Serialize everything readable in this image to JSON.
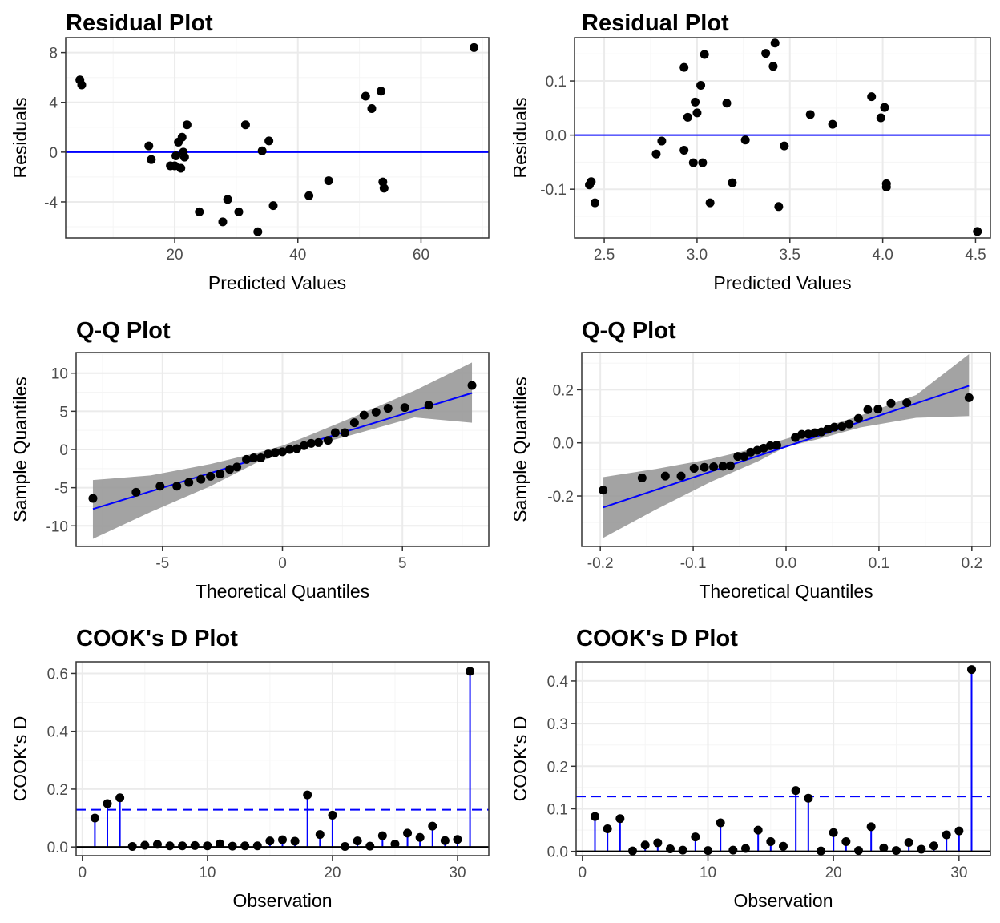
{
  "colors": {
    "point": "#000000",
    "line": "#0000ff",
    "band": "#999999",
    "grid_major": "#ebebeb",
    "grid_minor": "#f5f5f5",
    "panel_border": "#333333"
  },
  "chart_data": [
    {
      "type": "scatter",
      "title": "Residual Plot",
      "xlabel": "Predicted Values",
      "ylabel": "Residuals",
      "xlim": [
        2.3,
        71.0
      ],
      "ylim": [
        -6.9,
        9.2
      ],
      "xticks": [
        20,
        40,
        60
      ],
      "xtick_labels": [
        "20",
        "40",
        "60"
      ],
      "yticks": [
        -4,
        0,
        4,
        8
      ],
      "ytick_labels": [
        "-4",
        "0",
        "4",
        "8"
      ],
      "hline": 0,
      "points": [
        [
          4.6,
          5.8
        ],
        [
          4.9,
          5.4
        ],
        [
          15.8,
          0.5
        ],
        [
          16.2,
          -0.6
        ],
        [
          19.3,
          -1.1
        ],
        [
          20.0,
          -1.1
        ],
        [
          20.2,
          -0.3
        ],
        [
          20.6,
          0.8
        ],
        [
          21.0,
          -1.3
        ],
        [
          21.2,
          1.2
        ],
        [
          21.4,
          0.0
        ],
        [
          21.6,
          -0.4
        ],
        [
          22.0,
          2.2
        ],
        [
          24.0,
          -4.8
        ],
        [
          27.8,
          -5.6
        ],
        [
          28.6,
          -3.8
        ],
        [
          30.4,
          -4.8
        ],
        [
          31.5,
          2.2
        ],
        [
          33.5,
          -6.4
        ],
        [
          34.2,
          0.1
        ],
        [
          35.3,
          0.9
        ],
        [
          36.0,
          -4.3
        ],
        [
          41.8,
          -3.5
        ],
        [
          45.0,
          -2.3
        ],
        [
          51.0,
          4.5
        ],
        [
          52.0,
          3.5
        ],
        [
          53.5,
          4.9
        ],
        [
          53.8,
          -2.4
        ],
        [
          54.0,
          -2.9
        ],
        [
          68.6,
          8.4
        ]
      ]
    },
    {
      "type": "scatter",
      "title": "Residual Plot",
      "xlabel": "Predicted Values",
      "ylabel": "Residuals",
      "xlim": [
        2.34,
        4.58
      ],
      "ylim": [
        -0.19,
        0.18
      ],
      "xticks": [
        2.5,
        3.0,
        3.5,
        4.0,
        4.5
      ],
      "xtick_labels": [
        "2.5",
        "3.0",
        "3.5",
        "4.0",
        "4.5"
      ],
      "yticks": [
        -0.1,
        0.0,
        0.1
      ],
      "ytick_labels": [
        "-0.1",
        "0.0",
        "0.1"
      ],
      "hline": 0,
      "points": [
        [
          2.42,
          -0.092
        ],
        [
          2.43,
          -0.086
        ],
        [
          2.45,
          -0.125
        ],
        [
          2.78,
          -0.035
        ],
        [
          2.81,
          -0.011
        ],
        [
          2.93,
          -0.028
        ],
        [
          2.93,
          0.125
        ],
        [
          2.95,
          0.033
        ],
        [
          2.98,
          -0.051
        ],
        [
          2.99,
          0.061
        ],
        [
          3.0,
          0.041
        ],
        [
          3.02,
          0.092
        ],
        [
          3.03,
          -0.051
        ],
        [
          3.04,
          0.149
        ],
        [
          3.07,
          -0.125
        ],
        [
          3.16,
          0.059
        ],
        [
          3.19,
          -0.088
        ],
        [
          3.26,
          -0.009
        ],
        [
          3.37,
          0.151
        ],
        [
          3.41,
          0.127
        ],
        [
          3.42,
          0.17
        ],
        [
          3.44,
          -0.132
        ],
        [
          3.47,
          -0.02
        ],
        [
          3.61,
          0.038
        ],
        [
          3.73,
          0.02
        ],
        [
          3.94,
          0.071
        ],
        [
          3.99,
          0.032
        ],
        [
          4.01,
          0.051
        ],
        [
          4.02,
          -0.09
        ],
        [
          4.02,
          -0.096
        ],
        [
          4.51,
          -0.178
        ]
      ]
    },
    {
      "type": "scatter",
      "title": "Q-Q Plot",
      "xlabel": "Theoretical Quantiles",
      "ylabel": "Sample Quantiles",
      "xlim": [
        -8.6,
        8.6
      ],
      "ylim": [
        -12.7,
        12.7
      ],
      "xticks": [
        -5,
        0,
        5
      ],
      "xtick_labels": [
        "-5",
        "0",
        "5"
      ],
      "yticks": [
        -10,
        -5,
        0,
        5,
        10
      ],
      "ytick_labels": [
        "-10",
        "-5",
        "0",
        "5",
        "10"
      ],
      "fit_line": [
        [
          -7.9,
          -7.8
        ],
        [
          7.9,
          7.4
        ]
      ],
      "band_upper": [
        [
          -7.9,
          -4.0
        ],
        [
          -5.5,
          -3.4
        ],
        [
          -3.0,
          -1.9
        ],
        [
          -1.0,
          -0.4
        ],
        [
          0.0,
          0.5
        ],
        [
          1.0,
          1.7
        ],
        [
          3.0,
          4.3
        ],
        [
          5.5,
          7.7
        ],
        [
          7.9,
          11.4
        ]
      ],
      "band_lower": [
        [
          -7.9,
          -11.7
        ],
        [
          -5.5,
          -8.2
        ],
        [
          -3.0,
          -4.8
        ],
        [
          -1.0,
          -1.6
        ],
        [
          0.0,
          -0.6
        ],
        [
          1.0,
          0.3
        ],
        [
          3.0,
          2.0
        ],
        [
          5.5,
          4.2
        ],
        [
          7.9,
          3.5
        ]
      ],
      "points": [
        [
          -7.9,
          -6.4
        ],
        [
          -6.1,
          -5.6
        ],
        [
          -5.1,
          -4.8
        ],
        [
          -4.4,
          -4.8
        ],
        [
          -3.9,
          -4.3
        ],
        [
          -3.4,
          -3.9
        ],
        [
          -3.0,
          -3.5
        ],
        [
          -2.6,
          -3.2
        ],
        [
          -2.2,
          -2.6
        ],
        [
          -1.9,
          -2.3
        ],
        [
          -1.5,
          -1.3
        ],
        [
          -1.2,
          -1.1
        ],
        [
          -0.9,
          -1.1
        ],
        [
          -0.6,
          -0.6
        ],
        [
          -0.3,
          -0.4
        ],
        [
          0.0,
          -0.3
        ],
        [
          0.3,
          0.0
        ],
        [
          0.6,
          0.1
        ],
        [
          0.9,
          0.5
        ],
        [
          1.2,
          0.8
        ],
        [
          1.5,
          0.9
        ],
        [
          1.9,
          1.2
        ],
        [
          2.2,
          2.2
        ],
        [
          2.6,
          2.2
        ],
        [
          3.0,
          3.5
        ],
        [
          3.4,
          4.5
        ],
        [
          3.9,
          4.9
        ],
        [
          4.4,
          5.4
        ],
        [
          5.1,
          5.5
        ],
        [
          6.1,
          5.8
        ],
        [
          7.9,
          8.4
        ]
      ]
    },
    {
      "type": "scatter",
      "title": "Q-Q Plot",
      "xlabel": "Theoretical Quantiles",
      "ylabel": "Sample Quantiles",
      "xlim": [
        -0.22,
        0.22
      ],
      "ylim": [
        -0.39,
        0.34
      ],
      "xticks": [
        -0.2,
        -0.1,
        0.0,
        0.1,
        0.2
      ],
      "xtick_labels": [
        "-0.2",
        "-0.1",
        "0.0",
        "0.1",
        "0.2"
      ],
      "yticks": [
        -0.2,
        0.0,
        0.2
      ],
      "ytick_labels": [
        "-0.2",
        "0.0",
        "0.2"
      ],
      "fit_line": [
        [
          -0.197,
          -0.243
        ],
        [
          0.197,
          0.215
        ]
      ],
      "band_upper": [
        [
          -0.197,
          -0.129
        ],
        [
          -0.14,
          -0.098
        ],
        [
          -0.08,
          -0.06
        ],
        [
          -0.03,
          -0.018
        ],
        [
          0.0,
          0.015
        ],
        [
          0.03,
          0.046
        ],
        [
          0.08,
          0.103
        ],
        [
          0.14,
          0.18
        ],
        [
          0.197,
          0.334
        ]
      ],
      "band_lower": [
        [
          -0.197,
          -0.358
        ],
        [
          -0.14,
          -0.251
        ],
        [
          -0.08,
          -0.145
        ],
        [
          -0.03,
          -0.069
        ],
        [
          0.0,
          -0.015
        ],
        [
          0.03,
          0.01
        ],
        [
          0.08,
          0.058
        ],
        [
          0.14,
          0.094
        ],
        [
          0.197,
          0.101
        ]
      ],
      "points": [
        [
          -0.197,
          -0.178
        ],
        [
          -0.155,
          -0.132
        ],
        [
          -0.13,
          -0.125
        ],
        [
          -0.113,
          -0.125
        ],
        [
          -0.099,
          -0.096
        ],
        [
          -0.088,
          -0.092
        ],
        [
          -0.078,
          -0.09
        ],
        [
          -0.068,
          -0.088
        ],
        [
          -0.06,
          -0.086
        ],
        [
          -0.052,
          -0.051
        ],
        [
          -0.045,
          -0.051
        ],
        [
          -0.038,
          -0.035
        ],
        [
          -0.031,
          -0.028
        ],
        [
          -0.024,
          -0.02
        ],
        [
          -0.017,
          -0.011
        ],
        [
          -0.01,
          -0.009
        ],
        [
          0.01,
          0.02
        ],
        [
          0.017,
          0.032
        ],
        [
          0.024,
          0.033
        ],
        [
          0.031,
          0.038
        ],
        [
          0.038,
          0.041
        ],
        [
          0.045,
          0.051
        ],
        [
          0.052,
          0.059
        ],
        [
          0.06,
          0.061
        ],
        [
          0.068,
          0.071
        ],
        [
          0.078,
          0.092
        ],
        [
          0.088,
          0.125
        ],
        [
          0.099,
          0.127
        ],
        [
          0.113,
          0.149
        ],
        [
          0.13,
          0.151
        ],
        [
          0.197,
          0.17
        ]
      ]
    },
    {
      "type": "bar",
      "title": "COOK's D Plot",
      "xlabel": "Observation",
      "ylabel": "COOK's D",
      "xlim": [
        -0.5,
        32.5
      ],
      "ylim": [
        -0.03,
        0.64
      ],
      "xticks": [
        0,
        10,
        20,
        30
      ],
      "xtick_labels": [
        "0",
        "10",
        "20",
        "30"
      ],
      "yticks": [
        0.0,
        0.2,
        0.4,
        0.6
      ],
      "ytick_labels": [
        "0.0",
        "0.2",
        "0.4",
        "0.6"
      ],
      "hline": 0,
      "threshold": 0.129,
      "x": [
        1,
        2,
        3,
        4,
        5,
        6,
        7,
        8,
        9,
        10,
        11,
        12,
        13,
        14,
        15,
        16,
        17,
        18,
        19,
        20,
        21,
        22,
        23,
        24,
        25,
        26,
        27,
        28,
        29,
        30,
        31
      ],
      "values": [
        0.1,
        0.15,
        0.17,
        0.002,
        0.006,
        0.009,
        0.004,
        0.004,
        0.005,
        0.004,
        0.011,
        0.003,
        0.004,
        0.004,
        0.021,
        0.025,
        0.02,
        0.18,
        0.043,
        0.11,
        0.002,
        0.021,
        0.003,
        0.039,
        0.01,
        0.048,
        0.033,
        0.072,
        0.022,
        0.026,
        0.607
      ]
    },
    {
      "type": "bar",
      "title": "COOK's D Plot",
      "xlabel": "Observation",
      "ylabel": "COOK's D",
      "xlim": [
        -0.5,
        32.5
      ],
      "ylim": [
        -0.01,
        0.445
      ],
      "xticks": [
        0,
        10,
        20,
        30
      ],
      "xtick_labels": [
        "0",
        "10",
        "20",
        "30"
      ],
      "yticks": [
        0.0,
        0.1,
        0.2,
        0.3,
        0.4
      ],
      "ytick_labels": [
        "0.0",
        "0.1",
        "0.2",
        "0.3",
        "0.4"
      ],
      "hline": 0,
      "threshold": 0.129,
      "x": [
        1,
        2,
        3,
        4,
        5,
        6,
        7,
        8,
        9,
        10,
        11,
        12,
        13,
        14,
        15,
        16,
        17,
        18,
        19,
        20,
        21,
        22,
        23,
        24,
        25,
        26,
        27,
        28,
        29,
        30,
        31
      ],
      "values": [
        0.082,
        0.053,
        0.077,
        0.001,
        0.015,
        0.02,
        0.006,
        0.003,
        0.034,
        0.002,
        0.067,
        0.003,
        0.007,
        0.05,
        0.023,
        0.012,
        0.143,
        0.125,
        0.001,
        0.044,
        0.023,
        0.002,
        0.058,
        0.008,
        0.002,
        0.021,
        0.005,
        0.013,
        0.039,
        0.048,
        0.427
      ]
    }
  ]
}
